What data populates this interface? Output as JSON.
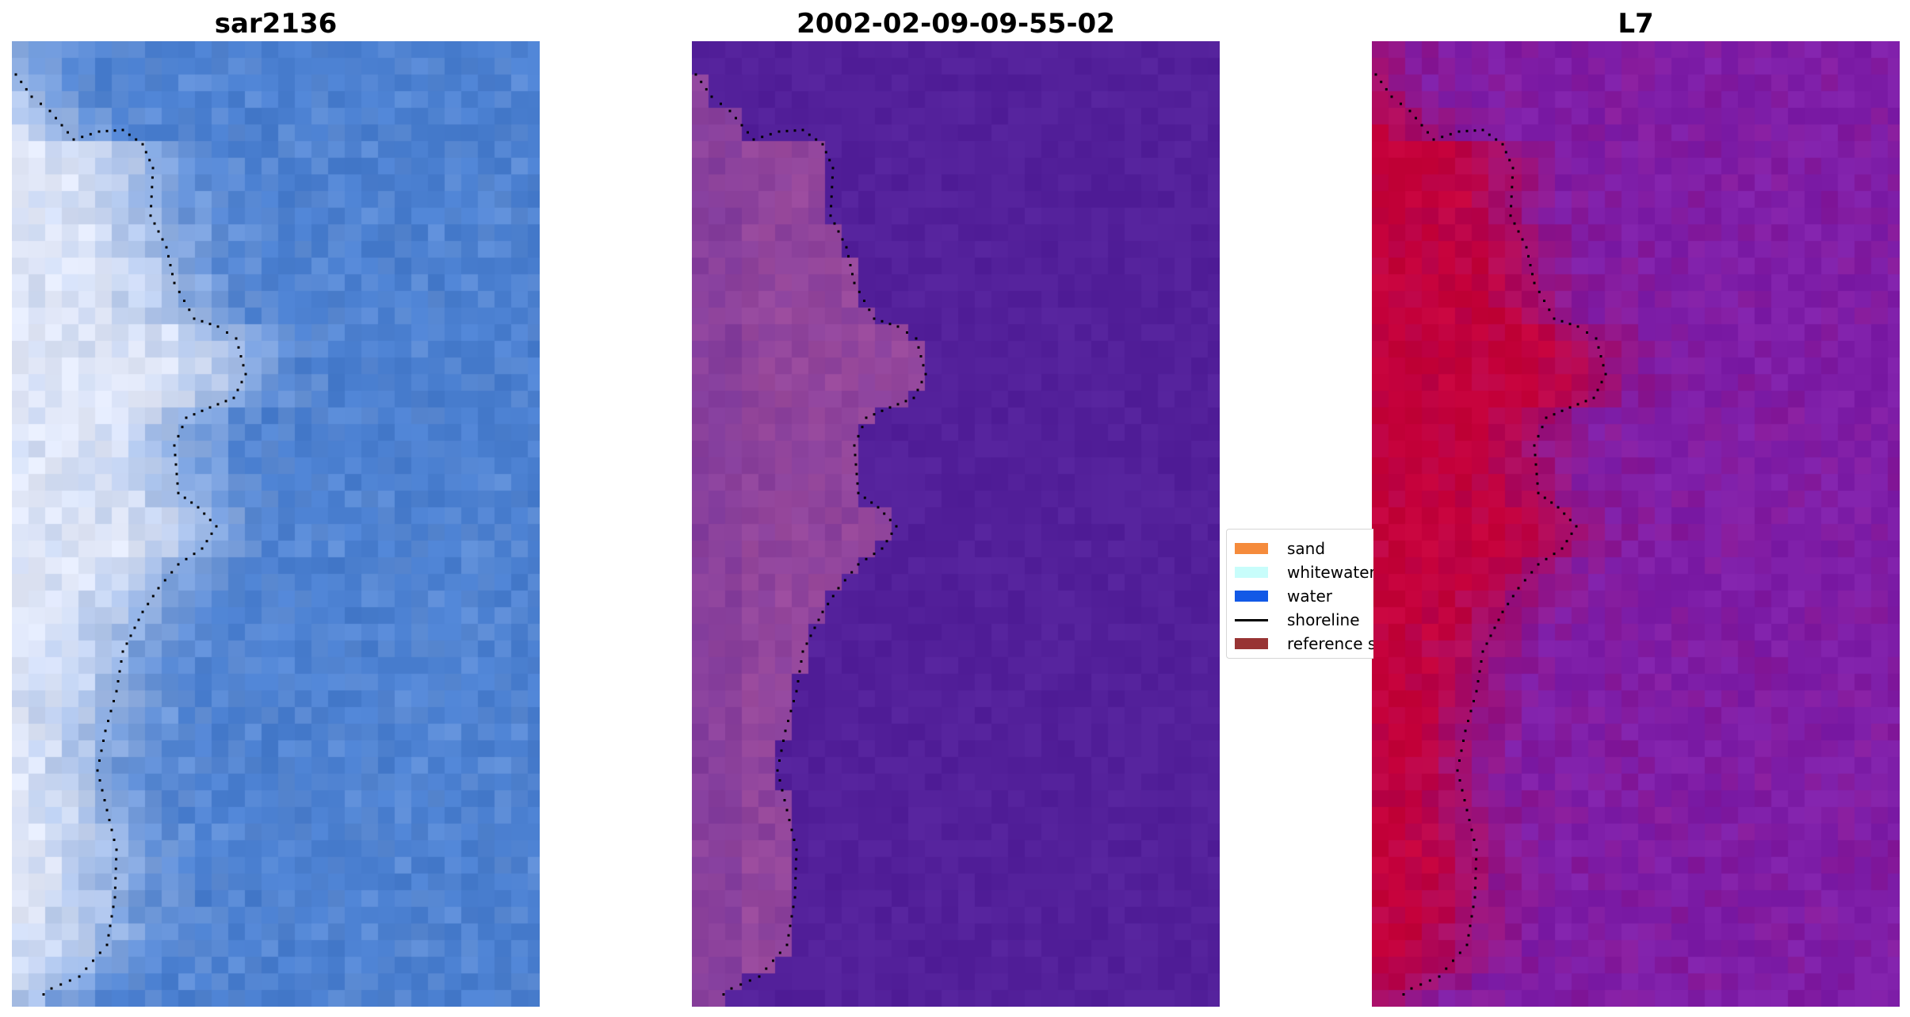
{
  "panels": [
    {
      "title": "sar2136"
    },
    {
      "title": "2002-02-09-09-55-02"
    },
    {
      "title": "L7"
    }
  ],
  "legend": {
    "items": [
      {
        "label": "sand",
        "color": "#f58b3c",
        "kind": "patch"
      },
      {
        "label": "whitewater",
        "color": "#c8fdfb",
        "kind": "patch"
      },
      {
        "label": "water",
        "color": "#1259e6",
        "kind": "patch"
      },
      {
        "label": "shoreline",
        "color": "#000000",
        "kind": "line"
      },
      {
        "label": "reference shoreline",
        "color": "#983434",
        "kind": "patch"
      }
    ]
  },
  "colors": {
    "sat_water": "#4a7fd0",
    "sat_land": "#e2e8f8",
    "class_water": "#53209a",
    "class_land": "#9a4a9c",
    "index_water": "#7e1ea8",
    "index_land": "#c4003a"
  }
}
